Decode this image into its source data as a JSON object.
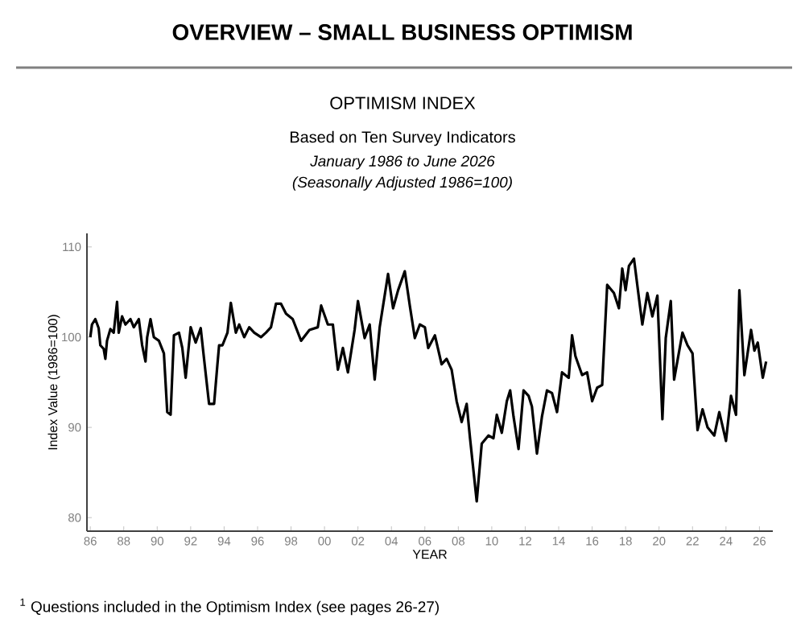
{
  "chart_data": {
    "type": "line",
    "title": "OVERVIEW – SMALL BUSINESS OPTIMISM",
    "subtitle": "OPTIMISM INDEX",
    "xlabel": "YEAR",
    "ylabel": "Index Value (1986=100)",
    "annotations": [
      "Based on Ten Survey Indicators",
      "January 1986 to June 2026",
      "(Seasonally Adjusted 1986=100)",
      "$^{1}$ Questions included in the Optimism Index (see pages 26-27)"
    ],
    "x": [
      1986.0,
      1986.1,
      1986.3,
      1986.5,
      1986.6,
      1986.8,
      1986.9,
      1987.0,
      1987.2,
      1987.4,
      1987.6,
      1987.7,
      1987.9,
      1988.1,
      1988.4,
      1988.6,
      1988.9,
      1989.1,
      1989.3,
      1989.4,
      1989.6,
      1989.8,
      1990.1,
      1990.4,
      1990.6,
      1990.8,
      1991.0,
      1991.3,
      1991.5,
      1991.7,
      1992.0,
      1992.3,
      1992.6,
      1992.8,
      1993.1,
      1993.4,
      1993.6,
      1993.7,
      1993.9,
      1994.2,
      1994.4,
      1994.7,
      1994.9,
      1995.2,
      1995.5,
      1995.8,
      1996.2,
      1996.5,
      1996.8,
      1997.1,
      1997.4,
      1997.7,
      1998.1,
      1998.6,
      1999.1,
      1999.6,
      1999.8,
      2000.2,
      2000.5,
      2000.8,
      2001.1,
      2001.4,
      2001.8,
      2002.0,
      2002.4,
      2002.7,
      2003.0,
      2003.3,
      2003.8,
      2004.1,
      2004.4,
      2004.8,
      2005.1,
      2005.4,
      2005.7,
      2006.0,
      2006.2,
      2006.6,
      2007.0,
      2007.3,
      2007.6,
      2007.9,
      2008.2,
      2008.5,
      2008.7,
      2009.1,
      2009.4,
      2009.8,
      2010.1,
      2010.3,
      2010.6,
      2010.9,
      2011.1,
      2011.3,
      2011.6,
      2011.9,
      2012.2,
      2012.4,
      2012.7,
      2013.0,
      2013.3,
      2013.6,
      2013.9,
      2014.2,
      2014.6,
      2014.8,
      2015.0,
      2015.4,
      2015.7,
      2016.0,
      2016.3,
      2016.6,
      2016.9,
      2017.3,
      2017.6,
      2017.8,
      2018.0,
      2018.2,
      2018.5,
      2018.8,
      2019.0,
      2019.3,
      2019.6,
      2019.9,
      2020.2,
      2020.4,
      2020.7,
      2020.9,
      2021.4,
      2021.7,
      2022.0,
      2022.3,
      2022.6,
      2022.9,
      2023.3,
      2023.6,
      2024.0,
      2024.3,
      2024.6,
      2024.8,
      2025.1,
      2025.5,
      2025.7,
      2025.9,
      2026.2,
      2026.4
    ],
    "series": [
      {
        "color": "#000000",
        "values": [
          100,
          101.4,
          102,
          101,
          99.1,
          98.7,
          97.6,
          99.6,
          100.9,
          100.5,
          103.9,
          100.5,
          102.3,
          101.4,
          102,
          101.1,
          102,
          99.1,
          97.3,
          100,
          102,
          100,
          99.6,
          98.2,
          91.7,
          91.4,
          100.2,
          100.5,
          98.8,
          95.5,
          101.1,
          99.4,
          101,
          97.6,
          92.6,
          92.6,
          97,
          99.1,
          99.1,
          100.5,
          103.8,
          100.5,
          101.4,
          100,
          101.1,
          100.5,
          100,
          100.5,
          101.1,
          103.7,
          103.7,
          102.6,
          102,
          99.6,
          100.8,
          101.1,
          103.5,
          101.4,
          101.4,
          96.4,
          98.8,
          96.1,
          100.8,
          104,
          99.9,
          101.4,
          95.3,
          101.1,
          107,
          103.2,
          105.2,
          107.3,
          103.5,
          99.9,
          101.4,
          101.1,
          98.8,
          100.2,
          97,
          97.6,
          96.4,
          92.9,
          90.6,
          92.6,
          88.8,
          81.8,
          88.2,
          89.1,
          88.8,
          91.4,
          89.4,
          92.9,
          94.1,
          91.2,
          87.6,
          94.1,
          93.5,
          92.3,
          87.1,
          91.2,
          94.1,
          93.8,
          91.7,
          96.1,
          95.5,
          100.2,
          97.9,
          95.8,
          96.1,
          92.9,
          94.4,
          94.7,
          105.8,
          104.9,
          103.2,
          107.6,
          105.2,
          107.9,
          108.7,
          104.3,
          101.4,
          104.9,
          102.3,
          104.6,
          90.9,
          99.9,
          104,
          95.3,
          100.5,
          99.1,
          98.2,
          89.7,
          92,
          90,
          89.1,
          91.7,
          88.5,
          93.5,
          91.4,
          105.2,
          95.8,
          100.8,
          98.5,
          99.4,
          95.5,
          97.3
        ]
      }
    ],
    "xlim": [
      1985.8,
      2026.8
    ],
    "ylim": [
      78.5,
      111.5
    ],
    "xticks": [
      {
        "value": 1986,
        "label": "86"
      },
      {
        "value": 1988,
        "label": "88"
      },
      {
        "value": 1990,
        "label": "90"
      },
      {
        "value": 1992,
        "label": "92"
      },
      {
        "value": 1994,
        "label": "94"
      },
      {
        "value": 1996,
        "label": "96"
      },
      {
        "value": 1998,
        "label": "98"
      },
      {
        "value": 2000,
        "label": "00"
      },
      {
        "value": 2002,
        "label": "02"
      },
      {
        "value": 2004,
        "label": "04"
      },
      {
        "value": 2006,
        "label": "06"
      },
      {
        "value": 2008,
        "label": "08"
      },
      {
        "value": 2010,
        "label": "10"
      },
      {
        "value": 2012,
        "label": "12"
      },
      {
        "value": 2014,
        "label": "14"
      },
      {
        "value": 2016,
        "label": "16"
      },
      {
        "value": 2018,
        "label": "18"
      },
      {
        "value": 2020,
        "label": "20"
      },
      {
        "value": 2022,
        "label": "22"
      },
      {
        "value": 2024,
        "label": "24"
      },
      {
        "value": 2026,
        "label": "26"
      }
    ],
    "yticks": [
      80,
      90,
      100,
      110
    ],
    "grid": false,
    "legend": false,
    "marker": "none",
    "line_style": "solid"
  }
}
